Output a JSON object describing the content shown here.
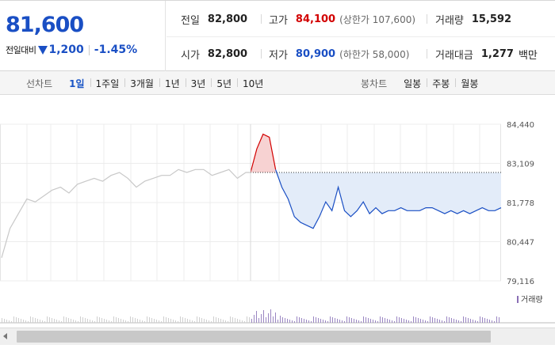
{
  "quote": {
    "price": "81,600",
    "change_label": "전일대비",
    "change_amount": "1,200",
    "change_rate": "-1.45%",
    "rows": [
      [
        {
          "key": "전일",
          "value": "82,800"
        },
        {
          "key": "고가",
          "value": "84,100",
          "sub": "(상한가 107,600)"
        },
        {
          "key": "거래량",
          "value": "15,592"
        }
      ],
      [
        {
          "key": "시가",
          "value": "82,800"
        },
        {
          "key": "저가",
          "value": "80,900",
          "sub": "(하한가 58,000)"
        },
        {
          "key": "거래대금",
          "value": "1,277",
          "unit": "백만"
        }
      ]
    ]
  },
  "tabs": {
    "line_title": "선차트",
    "line_tabs": [
      "1일",
      "1주일",
      "3개월",
      "1년",
      "3년",
      "5년",
      "10년"
    ],
    "line_active": "1일",
    "candle_title": "봉차트",
    "candle_tabs": [
      "일봉",
      "주봉",
      "월봉"
    ]
  },
  "colors": {
    "rise": "#d20000",
    "fall": "#1a4fc4",
    "prev_day_gray": "#c8c8c8",
    "fill_fall": "#e3ecf9",
    "fill_rise": "#f7d2d2"
  },
  "chart_data": {
    "type": "line",
    "y_ticks": [
      "84,440",
      "83,109",
      "81,778",
      "80,447",
      "79,116"
    ],
    "ylim": [
      79116,
      84440
    ],
    "previous_close": 82800,
    "previous_day_series": [
      79900,
      80900,
      81400,
      81900,
      81800,
      82000,
      82200,
      82300,
      82100,
      82400,
      82500,
      82600,
      82500,
      82700,
      82800,
      82600,
      82300,
      82500,
      82600,
      82700,
      82700,
      82900,
      82800,
      82900,
      82900,
      82700,
      82800,
      82900,
      82600,
      82800
    ],
    "today_series": [
      82800,
      83600,
      84100,
      84000,
      82900,
      82300,
      81900,
      81300,
      81100,
      81000,
      80900,
      81300,
      81800,
      81500,
      82300,
      81500,
      81300,
      81500,
      81800,
      81400,
      81600,
      81400,
      81500,
      81500,
      81600,
      81500,
      81500,
      81500,
      81600,
      81600,
      81500,
      81400,
      81500,
      81400,
      81500,
      81400,
      81500,
      81600,
      81500,
      81500,
      81600
    ],
    "volume_label": "거래량",
    "grid": true,
    "legend": "bottom-right"
  }
}
